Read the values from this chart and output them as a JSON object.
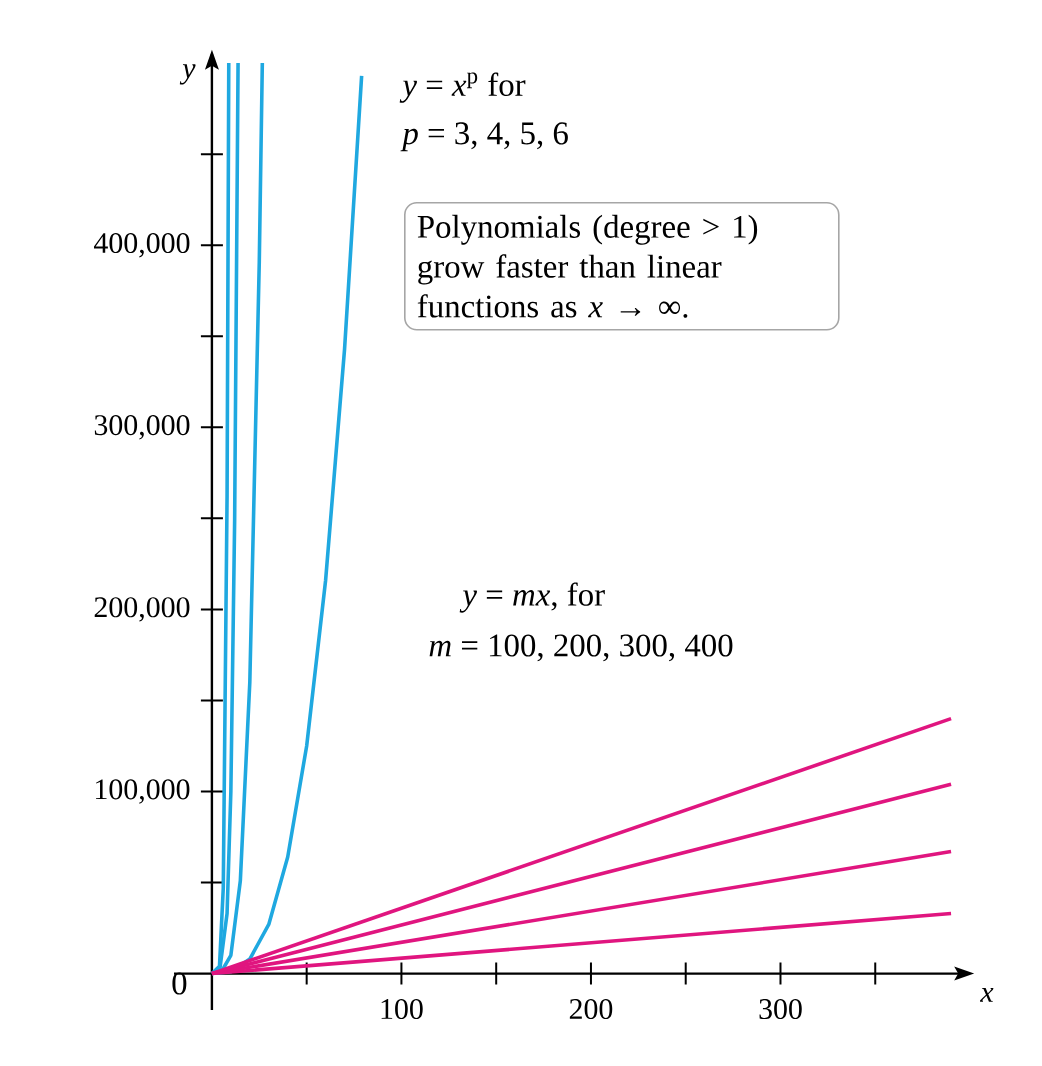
{
  "chart_data": {
    "type": "line",
    "xlabel": "x",
    "ylabel": "y",
    "xlim": [
      -20,
      400
    ],
    "ylim": [
      -20000,
      505000
    ],
    "xticks": [
      {
        "value": 50,
        "label": null
      },
      100,
      {
        "value": 150,
        "label": null
      },
      200,
      {
        "value": 250,
        "label": null
      },
      300,
      {
        "value": 350,
        "label": null
      }
    ],
    "yticks": [
      {
        "value": 50000,
        "label": null
      },
      {
        "value": 100000,
        "label": "100,000"
      },
      {
        "value": 150000,
        "label": null
      },
      {
        "value": 200000,
        "label": "200,000"
      },
      {
        "value": 250000,
        "label": null
      },
      {
        "value": 300000,
        "label": "300,000"
      },
      {
        "value": 350000,
        "label": null
      },
      {
        "value": 400000,
        "label": "400,000"
      },
      {
        "value": 450000,
        "label": null
      }
    ],
    "grid": false,
    "marker": "none",
    "line_style": "solid",
    "series": [
      {
        "color": "#1fa8e0",
        "x": [
          0,
          10,
          20,
          30,
          40,
          50,
          60,
          70,
          79
        ],
        "values": [
          0,
          1000,
          8000,
          27000,
          64000,
          125000,
          216000,
          343000,
          493000
        ]
      },
      {
        "color": "#1fa8e0",
        "x": [
          0,
          5,
          10,
          15,
          20,
          25,
          26.6
        ],
        "values": [
          0,
          1000,
          10000,
          51000,
          160000,
          391000,
          500000
        ]
      },
      {
        "color": "#1fa8e0",
        "x": [
          0,
          4,
          8,
          10,
          12,
          13.8
        ],
        "values": [
          0,
          1000,
          33000,
          100000,
          249000,
          500000
        ]
      },
      {
        "color": "#1fa8e0",
        "x": [
          0,
          4,
          6,
          8,
          8.9
        ],
        "values": [
          0,
          4000,
          47000,
          262000,
          500000
        ]
      },
      {
        "color": "#e0157f",
        "x": [
          0,
          390
        ],
        "values": [
          0,
          33000
        ]
      },
      {
        "color": "#e0157f",
        "x": [
          0,
          390
        ],
        "values": [
          0,
          67000
        ]
      },
      {
        "color": "#e0157f",
        "x": [
          0,
          390
        ],
        "values": [
          0,
          104000
        ]
      },
      {
        "color": "#e0157f",
        "x": [
          0,
          390
        ],
        "values": [
          0,
          140000
        ]
      }
    ],
    "annotations": [
      "0",
      "*y* = *x*$^{p}$ for",
      "*p* = 3, 4, 5, 6",
      "Polynomials (degree > 1) grow faster than linear functions as *x* → ∞.",
      "*y* = *mx*, for",
      "*m* = 100, 200, 300, 400"
    ]
  }
}
